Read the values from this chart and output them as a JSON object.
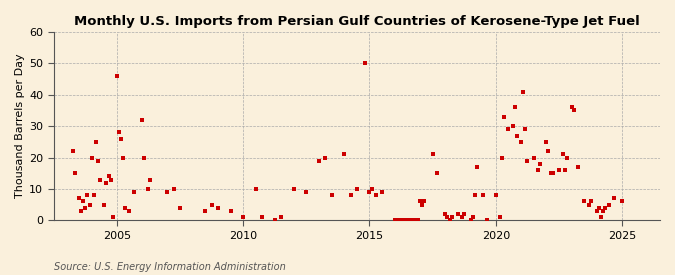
{
  "title": "Monthly U.S. Imports from Persian Gulf Countries of Kerosene-Type Jet Fuel",
  "ylabel": "Thousand Barrels per Day",
  "source": "Source: U.S. Energy Information Administration",
  "bg_color": "#FAF0DC",
  "dot_color": "#CC0000",
  "ylim": [
    0,
    60
  ],
  "yticks": [
    0,
    10,
    20,
    30,
    40,
    50,
    60
  ],
  "xlim": [
    2002.5,
    2026.5
  ],
  "xticks": [
    2005,
    2010,
    2015,
    2020,
    2025
  ],
  "data": [
    [
      2003.25,
      22
    ],
    [
      2003.33,
      15
    ],
    [
      2003.5,
      7
    ],
    [
      2003.58,
      3
    ],
    [
      2003.67,
      6
    ],
    [
      2003.75,
      4
    ],
    [
      2003.83,
      8
    ],
    [
      2003.92,
      5
    ],
    [
      2004.0,
      20
    ],
    [
      2004.08,
      8
    ],
    [
      2004.17,
      25
    ],
    [
      2004.25,
      19
    ],
    [
      2004.33,
      13
    ],
    [
      2004.5,
      5
    ],
    [
      2004.58,
      12
    ],
    [
      2004.67,
      14
    ],
    [
      2004.75,
      13
    ],
    [
      2004.83,
      1
    ],
    [
      2005.0,
      46
    ],
    [
      2005.08,
      28
    ],
    [
      2005.17,
      26
    ],
    [
      2005.25,
      20
    ],
    [
      2005.33,
      4
    ],
    [
      2005.5,
      3
    ],
    [
      2005.67,
      9
    ],
    [
      2006.0,
      32
    ],
    [
      2006.08,
      20
    ],
    [
      2006.25,
      10
    ],
    [
      2006.33,
      13
    ],
    [
      2007.0,
      9
    ],
    [
      2007.25,
      10
    ],
    [
      2007.5,
      4
    ],
    [
      2008.5,
      3
    ],
    [
      2008.75,
      5
    ],
    [
      2009.0,
      4
    ],
    [
      2009.5,
      3
    ],
    [
      2010.0,
      1
    ],
    [
      2010.5,
      10
    ],
    [
      2010.75,
      1
    ],
    [
      2011.25,
      0
    ],
    [
      2011.5,
      1
    ],
    [
      2012.0,
      10
    ],
    [
      2012.5,
      9
    ],
    [
      2013.0,
      19
    ],
    [
      2013.25,
      20
    ],
    [
      2013.5,
      8
    ],
    [
      2014.0,
      21
    ],
    [
      2014.25,
      8
    ],
    [
      2014.5,
      10
    ],
    [
      2014.83,
      50
    ],
    [
      2015.0,
      9
    ],
    [
      2015.08,
      10
    ],
    [
      2015.25,
      8
    ],
    [
      2015.5,
      9
    ],
    [
      2016.0,
      0
    ],
    [
      2016.08,
      0
    ],
    [
      2016.17,
      0
    ],
    [
      2016.25,
      0
    ],
    [
      2016.33,
      0
    ],
    [
      2016.42,
      0
    ],
    [
      2016.5,
      0
    ],
    [
      2016.58,
      0
    ],
    [
      2016.67,
      0
    ],
    [
      2016.75,
      0
    ],
    [
      2016.83,
      0
    ],
    [
      2016.92,
      0
    ],
    [
      2017.0,
      6
    ],
    [
      2017.08,
      5
    ],
    [
      2017.17,
      6
    ],
    [
      2017.5,
      21
    ],
    [
      2017.67,
      15
    ],
    [
      2018.0,
      2
    ],
    [
      2018.08,
      1
    ],
    [
      2018.17,
      0
    ],
    [
      2018.25,
      1
    ],
    [
      2018.5,
      2
    ],
    [
      2018.67,
      1
    ],
    [
      2018.75,
      2
    ],
    [
      2019.0,
      0
    ],
    [
      2019.08,
      1
    ],
    [
      2019.17,
      8
    ],
    [
      2019.25,
      17
    ],
    [
      2019.5,
      8
    ],
    [
      2019.67,
      0
    ],
    [
      2020.0,
      8
    ],
    [
      2020.17,
      1
    ],
    [
      2020.25,
      20
    ],
    [
      2020.33,
      33
    ],
    [
      2020.5,
      29
    ],
    [
      2020.67,
      30
    ],
    [
      2020.75,
      36
    ],
    [
      2020.83,
      27
    ],
    [
      2021.0,
      25
    ],
    [
      2021.08,
      41
    ],
    [
      2021.17,
      29
    ],
    [
      2021.25,
      19
    ],
    [
      2021.5,
      20
    ],
    [
      2021.67,
      16
    ],
    [
      2021.75,
      18
    ],
    [
      2022.0,
      25
    ],
    [
      2022.08,
      22
    ],
    [
      2022.17,
      15
    ],
    [
      2022.25,
      15
    ],
    [
      2022.5,
      16
    ],
    [
      2022.67,
      21
    ],
    [
      2022.75,
      16
    ],
    [
      2022.83,
      20
    ],
    [
      2023.0,
      36
    ],
    [
      2023.08,
      35
    ],
    [
      2023.25,
      17
    ],
    [
      2023.5,
      6
    ],
    [
      2023.67,
      5
    ],
    [
      2023.75,
      6
    ],
    [
      2024.0,
      3
    ],
    [
      2024.08,
      4
    ],
    [
      2024.17,
      1
    ],
    [
      2024.25,
      3
    ],
    [
      2024.33,
      4
    ],
    [
      2024.5,
      5
    ],
    [
      2024.67,
      7
    ],
    [
      2025.0,
      6
    ]
  ]
}
